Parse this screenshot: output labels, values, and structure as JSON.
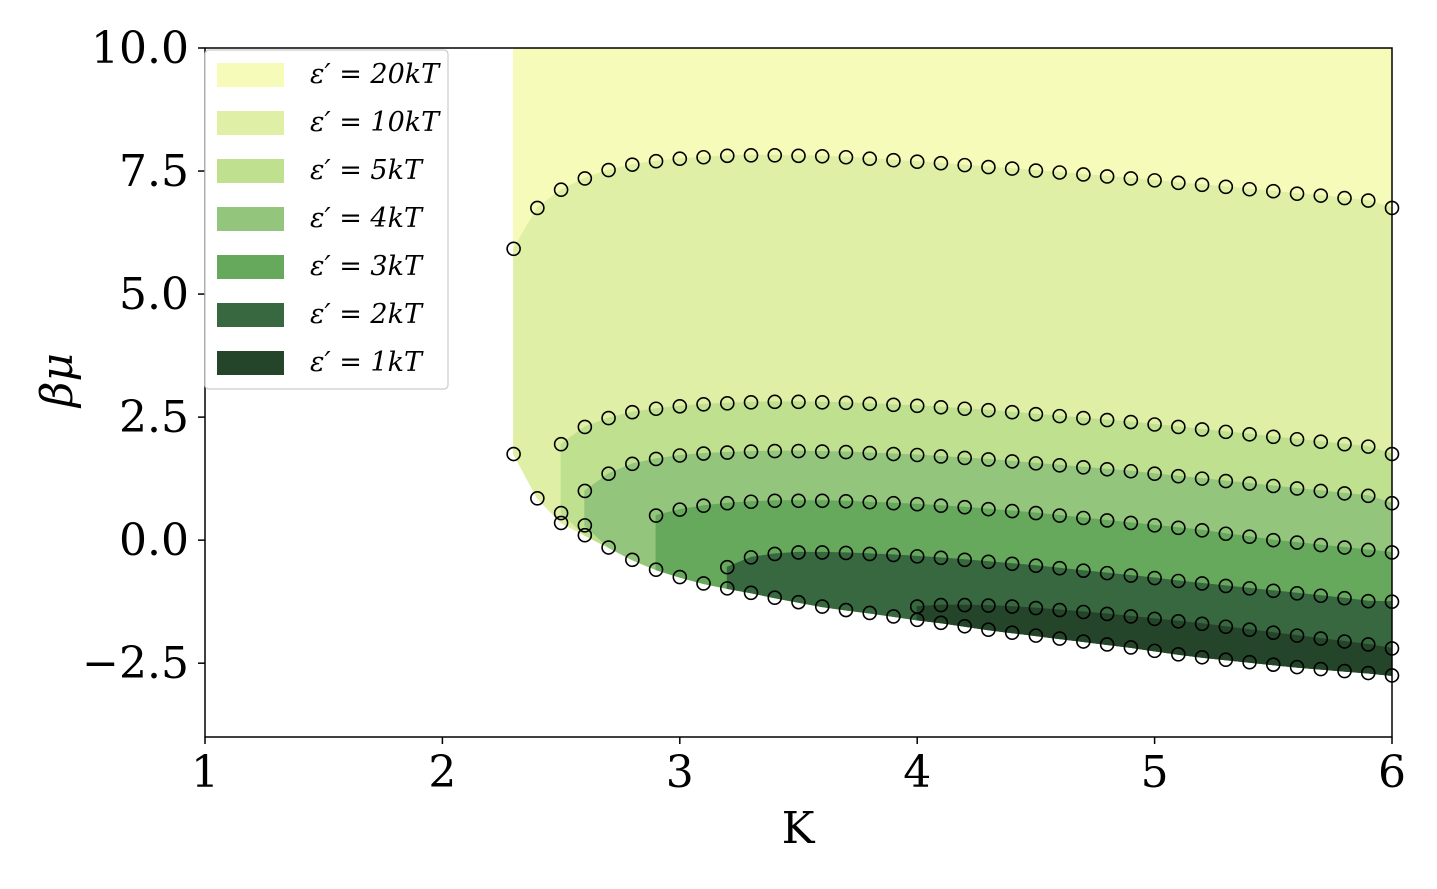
{
  "chart_data": {
    "type": "area",
    "xlabel": "K",
    "ylabel": "βμ",
    "xlim": [
      1,
      6
    ],
    "ylim": [
      -4,
      10
    ],
    "xticks": [
      "1",
      "2",
      "3",
      "4",
      "5",
      "6"
    ],
    "yticks": [
      "−2.5",
      "0.0",
      "2.5",
      "5.0",
      "7.5",
      "10.0"
    ],
    "ytick_values": [
      -2.5,
      0,
      2.5,
      5,
      7.5,
      10
    ],
    "grid": false,
    "legend_position": "upper-left",
    "x": [
      2.3,
      2.4,
      2.5,
      2.6,
      2.7,
      2.8,
      2.9,
      3.0,
      3.1,
      3.2,
      3.3,
      3.4,
      3.5,
      3.6,
      3.7,
      3.8,
      3.9,
      4.0,
      4.1,
      4.2,
      4.3,
      4.4,
      4.5,
      4.6,
      4.7,
      4.8,
      4.9,
      5.0,
      5.1,
      5.2,
      5.3,
      5.4,
      5.5,
      5.6,
      5.7,
      5.8,
      5.9,
      6.0
    ],
    "series": [
      {
        "name": "ε′ = 20kT",
        "color": "#f7fbb9",
        "upper": [
          10,
          10,
          10,
          10,
          10,
          10,
          10,
          10,
          10,
          10,
          10,
          10,
          10,
          10,
          10,
          10,
          10,
          10,
          10,
          10,
          10,
          10,
          10,
          10,
          10,
          10,
          10,
          10,
          10,
          10,
          10,
          10,
          10,
          10,
          10,
          10,
          10,
          10
        ],
        "lower": [
          5.92,
          6.75,
          7.12,
          7.35,
          7.52,
          7.63,
          7.7,
          7.75,
          7.78,
          7.81,
          7.82,
          7.82,
          7.81,
          7.8,
          7.78,
          7.75,
          7.72,
          7.69,
          7.66,
          7.62,
          7.58,
          7.55,
          7.51,
          7.47,
          7.43,
          7.39,
          7.35,
          7.31,
          7.26,
          7.22,
          7.18,
          7.13,
          7.09,
          7.04,
          7.0,
          6.95,
          6.9,
          6.75
        ]
      },
      {
        "name": "ε′ = 10kT",
        "color": "#e0efa6",
        "upper": [
          5.92,
          6.75,
          7.12,
          7.35,
          7.52,
          7.63,
          7.7,
          7.75,
          7.78,
          7.81,
          7.82,
          7.82,
          7.81,
          7.8,
          7.78,
          7.75,
          7.72,
          7.69,
          7.66,
          7.62,
          7.58,
          7.55,
          7.51,
          7.47,
          7.43,
          7.39,
          7.35,
          7.31,
          7.26,
          7.22,
          7.18,
          7.13,
          7.09,
          7.04,
          7.0,
          6.95,
          6.9,
          6.75
        ],
        "lower": [
          1.75,
          0.85,
          0.35,
          0.1,
          -0.15,
          -0.4,
          -0.6,
          -0.75,
          -0.88,
          -0.98,
          -1.07,
          -1.17,
          -1.26,
          -1.35,
          -1.42,
          -1.48,
          -1.55,
          -1.62,
          -1.68,
          -1.75,
          -1.82,
          -1.88,
          -1.94,
          -2.0,
          -2.06,
          -2.12,
          -2.18,
          -2.25,
          -2.32,
          -2.38,
          -2.43,
          -2.48,
          -2.53,
          -2.58,
          -2.62,
          -2.66,
          -2.7,
          -2.75
        ]
      },
      {
        "name": "ε′ = 5kT",
        "color": "#bfe18f",
        "upper": [
          null,
          null,
          1.95,
          2.3,
          2.48,
          2.6,
          2.67,
          2.72,
          2.76,
          2.78,
          2.8,
          2.81,
          2.81,
          2.8,
          2.79,
          2.77,
          2.75,
          2.73,
          2.7,
          2.67,
          2.64,
          2.6,
          2.56,
          2.52,
          2.48,
          2.44,
          2.4,
          2.35,
          2.3,
          2.25,
          2.2,
          2.15,
          2.1,
          2.05,
          2.0,
          1.95,
          1.9,
          1.75
        ],
        "lower": [
          null,
          null,
          0.55,
          0.1,
          -0.15,
          -0.4,
          -0.6,
          -0.75,
          -0.88,
          -0.98,
          -1.07,
          -1.17,
          -1.26,
          -1.35,
          -1.42,
          -1.48,
          -1.55,
          -1.62,
          -1.68,
          -1.75,
          -1.82,
          -1.88,
          -1.94,
          -2.0,
          -2.06,
          -2.12,
          -2.18,
          -2.25,
          -2.32,
          -2.38,
          -2.43,
          -2.48,
          -2.53,
          -2.58,
          -2.62,
          -2.66,
          -2.7,
          -2.75
        ]
      },
      {
        "name": "ε′ = 4kT",
        "color": "#93c67c",
        "upper": [
          null,
          null,
          null,
          1.0,
          1.35,
          1.55,
          1.65,
          1.72,
          1.76,
          1.78,
          1.8,
          1.81,
          1.81,
          1.8,
          1.79,
          1.77,
          1.75,
          1.73,
          1.7,
          1.67,
          1.64,
          1.6,
          1.56,
          1.52,
          1.48,
          1.44,
          1.4,
          1.35,
          1.3,
          1.25,
          1.2,
          1.15,
          1.1,
          1.05,
          1.0,
          0.95,
          0.9,
          0.75
        ],
        "lower": [
          null,
          null,
          null,
          0.3,
          -0.15,
          -0.4,
          -0.6,
          -0.75,
          -0.88,
          -0.98,
          -1.07,
          -1.17,
          -1.26,
          -1.35,
          -1.42,
          -1.48,
          -1.55,
          -1.62,
          -1.68,
          -1.75,
          -1.82,
          -1.88,
          -1.94,
          -2.0,
          -2.06,
          -2.12,
          -2.18,
          -2.25,
          -2.32,
          -2.38,
          -2.43,
          -2.48,
          -2.53,
          -2.58,
          -2.62,
          -2.66,
          -2.7,
          -2.75
        ]
      },
      {
        "name": "ε′ = 3kT",
        "color": "#66a95c",
        "upper": [
          null,
          null,
          null,
          null,
          null,
          null,
          0.5,
          0.62,
          0.7,
          0.75,
          0.78,
          0.8,
          0.8,
          0.8,
          0.79,
          0.77,
          0.75,
          0.73,
          0.7,
          0.67,
          0.63,
          0.59,
          0.55,
          0.5,
          0.45,
          0.4,
          0.35,
          0.3,
          0.25,
          0.2,
          0.13,
          0.07,
          0.0,
          -0.05,
          -0.1,
          -0.15,
          -0.2,
          -0.25
        ],
        "lower": [
          null,
          null,
          null,
          null,
          null,
          null,
          -0.6,
          -0.75,
          -0.88,
          -0.98,
          -1.07,
          -1.17,
          -1.26,
          -1.35,
          -1.42,
          -1.48,
          -1.55,
          -1.62,
          -1.68,
          -1.75,
          -1.82,
          -1.88,
          -1.94,
          -2.0,
          -2.06,
          -2.12,
          -2.18,
          -2.25,
          -2.32,
          -2.38,
          -2.43,
          -2.48,
          -2.53,
          -2.58,
          -2.62,
          -2.66,
          -2.7,
          -2.75
        ]
      },
      {
        "name": "ε′ = 2kT",
        "color": "#37683f",
        "upper": [
          null,
          null,
          null,
          null,
          null,
          null,
          null,
          null,
          null,
          -0.55,
          -0.35,
          -0.28,
          -0.25,
          -0.25,
          -0.26,
          -0.28,
          -0.3,
          -0.33,
          -0.36,
          -0.4,
          -0.44,
          -0.48,
          -0.52,
          -0.57,
          -0.62,
          -0.67,
          -0.72,
          -0.77,
          -0.83,
          -0.88,
          -0.93,
          -0.98,
          -1.03,
          -1.08,
          -1.13,
          -1.18,
          -1.24,
          -1.25
        ],
        "lower": [
          null,
          null,
          null,
          null,
          null,
          null,
          null,
          null,
          null,
          -0.98,
          -1.07,
          -1.17,
          -1.26,
          -1.35,
          -1.42,
          -1.48,
          -1.55,
          -1.62,
          -1.68,
          -1.75,
          -1.82,
          -1.88,
          -1.94,
          -2.0,
          -2.06,
          -2.12,
          -2.18,
          -2.25,
          -2.32,
          -2.38,
          -2.43,
          -2.48,
          -2.53,
          -2.58,
          -2.62,
          -2.66,
          -2.7,
          -2.75
        ]
      },
      {
        "name": "ε′ = 1kT",
        "color": "#24452a",
        "upper": [
          null,
          null,
          null,
          null,
          null,
          null,
          null,
          null,
          null,
          null,
          null,
          null,
          null,
          null,
          null,
          null,
          null,
          -1.35,
          -1.32,
          -1.32,
          -1.33,
          -1.35,
          -1.38,
          -1.42,
          -1.46,
          -1.5,
          -1.55,
          -1.6,
          -1.65,
          -1.7,
          -1.76,
          -1.82,
          -1.88,
          -1.94,
          -2.0,
          -2.06,
          -2.12,
          -2.2
        ],
        "lower": [
          null,
          null,
          null,
          null,
          null,
          null,
          null,
          null,
          null,
          null,
          null,
          null,
          null,
          null,
          null,
          null,
          null,
          -1.62,
          -1.68,
          -1.75,
          -1.82,
          -1.88,
          -1.94,
          -2.0,
          -2.06,
          -2.12,
          -2.18,
          -2.25,
          -2.32,
          -2.38,
          -2.43,
          -2.48,
          -2.53,
          -2.58,
          -2.62,
          -2.66,
          -2.7,
          -2.75
        ]
      }
    ]
  }
}
